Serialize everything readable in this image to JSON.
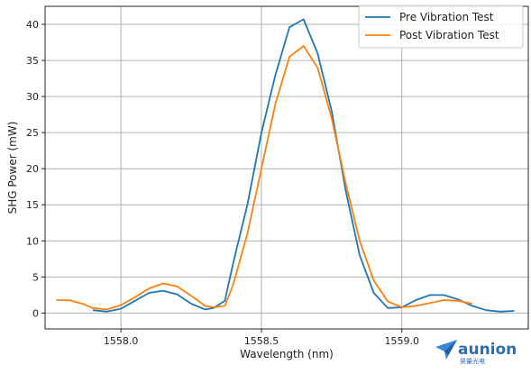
{
  "chart_data": {
    "type": "line",
    "title": "",
    "xlabel": "Wavelength (nm)",
    "ylabel": "SHG Power (mW)",
    "xlim": [
      1557.73,
      1559.45
    ],
    "ylim": [
      -2.2,
      42.5
    ],
    "xticks": [
      1558.0,
      1558.5,
      1559.0
    ],
    "xtick_labels": [
      "1558.0",
      "1558.5",
      "1559.0"
    ],
    "yticks": [
      0,
      5,
      10,
      15,
      20,
      25,
      30,
      35,
      40
    ],
    "ytick_labels": [
      "0",
      "5",
      "10",
      "15",
      "20",
      "25",
      "30",
      "35",
      "40"
    ],
    "grid": true,
    "legend_position": "top-right",
    "series": [
      {
        "name": "Pre Vibration Test",
        "color": "#1f77b4",
        "x": [
          1557.9,
          1557.95,
          1558.0,
          1558.05,
          1558.1,
          1558.15,
          1558.2,
          1558.25,
          1558.3,
          1558.33,
          1558.37,
          1558.4,
          1558.45,
          1558.5,
          1558.55,
          1558.6,
          1558.65,
          1558.7,
          1558.75,
          1558.8,
          1558.85,
          1558.9,
          1558.95,
          1559.0,
          1559.05,
          1559.1,
          1559.15,
          1559.2,
          1559.25,
          1559.3,
          1559.35,
          1559.4
        ],
        "y": [
          0.4,
          0.2,
          0.6,
          1.7,
          2.8,
          3.1,
          2.6,
          1.3,
          0.5,
          0.7,
          1.7,
          7.0,
          15.0,
          25.0,
          33.0,
          39.6,
          40.7,
          36.0,
          28.0,
          17.0,
          8.0,
          2.8,
          0.7,
          0.8,
          1.8,
          2.5,
          2.5,
          1.9,
          1.0,
          0.4,
          0.2,
          0.3
        ]
      },
      {
        "name": "Post Vibration Test",
        "color": "#ff7f0e",
        "x": [
          1557.77,
          1557.82,
          1557.87,
          1557.9,
          1557.95,
          1558.0,
          1558.05,
          1558.1,
          1558.15,
          1558.2,
          1558.25,
          1558.3,
          1558.33,
          1558.37,
          1558.4,
          1558.45,
          1558.5,
          1558.55,
          1558.6,
          1558.65,
          1558.7,
          1558.75,
          1558.8,
          1558.85,
          1558.9,
          1558.95,
          1559.0,
          1559.05,
          1559.1,
          1559.15,
          1559.2,
          1559.25
        ],
        "y": [
          1.8,
          1.75,
          1.2,
          0.7,
          0.5,
          1.1,
          2.2,
          3.4,
          4.1,
          3.7,
          2.4,
          1.0,
          0.8,
          1.0,
          4.0,
          11.0,
          20.0,
          29.0,
          35.5,
          37.0,
          34.0,
          27.0,
          18.0,
          10.0,
          4.5,
          1.6,
          0.8,
          1.0,
          1.4,
          1.8,
          1.7,
          1.3
        ]
      }
    ]
  },
  "logo": {
    "brand_text": "aunion",
    "brand_subtext": "昊量光电",
    "color": "#2a6db5"
  }
}
